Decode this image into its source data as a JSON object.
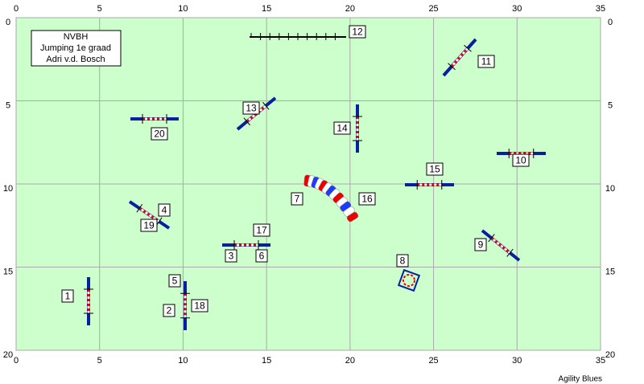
{
  "info_box": [
    "NVBH",
    "Jumping 1e graad",
    "Adri v.d. Bosch"
  ],
  "x_ticks": [
    0,
    5,
    10,
    15,
    20,
    25,
    30,
    35
  ],
  "y_ticks": [
    0,
    5,
    10,
    15,
    20
  ],
  "obstacle_labels": [
    "1",
    "2",
    "3",
    "4",
    "5",
    "6",
    "7",
    "8",
    "9",
    "10",
    "11",
    "12",
    "13",
    "14",
    "15",
    "16",
    "17",
    "18",
    "19",
    "20"
  ],
  "footer": "Agility Blues"
}
